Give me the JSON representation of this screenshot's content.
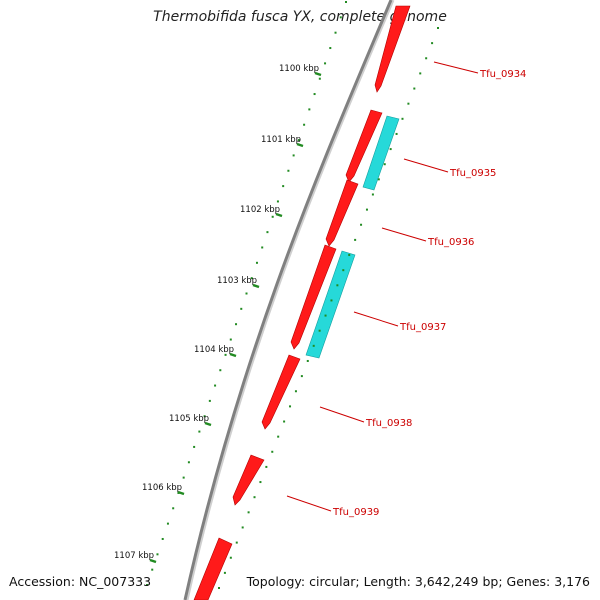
{
  "title": "Thermobifida fusca YX, complete genome",
  "footer": {
    "accession": "Accession: NC_007333",
    "topology": "Topology: circular; Length: 3,642,249 bp; Genes: 3,176"
  },
  "ticks": [
    "1100 kbp",
    "1101 kbp",
    "1102 kbp",
    "1103 kbp",
    "1104 kbp",
    "1105 kbp",
    "1106 kbp",
    "1107 kbp"
  ],
  "genes": [
    {
      "label": "Tfu_0934",
      "strand": "+"
    },
    {
      "label": "Tfu_0935",
      "strand": "+"
    },
    {
      "label": "Tfu_0936",
      "strand": "+"
    },
    {
      "label": "Tfu_0937",
      "strand": "+"
    },
    {
      "label": "Tfu_0938",
      "strand": "+"
    },
    {
      "label": "Tfu_0939",
      "strand": "+"
    }
  ],
  "colors": {
    "backbone": "#808080",
    "forward_gene": "#ff1a1a",
    "feature": "#26d9d9",
    "gc_ticks": "#228b22",
    "label": "#cc0000"
  }
}
